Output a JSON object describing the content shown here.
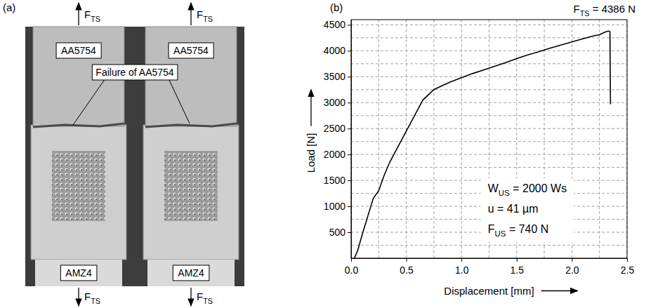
{
  "panel_a": {
    "label": "(a)",
    "annotation": "Failure of AA5754",
    "specimens": [
      {
        "top_label": "AA5754",
        "bottom_label": "AMZ4",
        "force_top": {
          "main": "F",
          "sub": "TS"
        },
        "force_bottom": {
          "main": "F",
          "sub": "TS"
        }
      },
      {
        "top_label": "AA5754",
        "bottom_label": "AMZ4",
        "force_top": {
          "main": "F",
          "sub": "TS"
        },
        "force_bottom": {
          "main": "F",
          "sub": "TS"
        }
      }
    ]
  },
  "chart_data": {
    "type": "line",
    "panel_label": "(b)",
    "title": {
      "main": "F",
      "sub": "TS",
      "rest": " = 4386 N"
    },
    "x_label": "Displacement [mm]",
    "y_label": "Load [N]",
    "annotations": [
      {
        "main": "W",
        "sub": "US",
        "rest": " = 2000 Ws"
      },
      {
        "main": "u",
        "rest": " = 41 µm"
      },
      {
        "main": "F",
        "sub": "US",
        "rest": " = 740 N"
      }
    ],
    "x": [
      0.03,
      0.06,
      0.1,
      0.15,
      0.2,
      0.25,
      0.3,
      0.35,
      0.4,
      0.45,
      0.5,
      0.55,
      0.6,
      0.65,
      0.7,
      0.75,
      0.8,
      0.9,
      1.0,
      1.1,
      1.2,
      1.3,
      1.4,
      1.5,
      1.6,
      1.7,
      1.8,
      1.9,
      2.0,
      2.1,
      2.2,
      2.25,
      2.3,
      2.33,
      2.345,
      2.35
    ],
    "values": [
      0,
      150,
      450,
      800,
      1150,
      1300,
      1600,
      1850,
      2050,
      2250,
      2450,
      2650,
      2850,
      3050,
      3150,
      3250,
      3300,
      3400,
      3480,
      3560,
      3630,
      3700,
      3770,
      3850,
      3920,
      3980,
      4050,
      4110,
      4170,
      4230,
      4290,
      4310,
      4360,
      4380,
      4370,
      2970
    ],
    "color": "#000000",
    "line_style": "solid",
    "xlim": [
      0,
      2.5
    ],
    "ylim": [
      0,
      4600
    ],
    "xticks": [
      {
        "value": 0,
        "label": "0.0"
      },
      0.5,
      {
        "value": 1,
        "label": "1.0"
      },
      1.5,
      {
        "value": 2,
        "label": "2.0"
      },
      2.5
    ],
    "yticks": [
      500,
      1000,
      1500,
      2000,
      2500,
      3000,
      3500,
      4000,
      4500
    ],
    "xticks_minor": [
      0.25,
      0.75,
      1.25,
      1.75,
      2.25
    ],
    "yticks_minor": [
      250,
      750,
      1250,
      1750,
      2250,
      2750,
      3250,
      3750,
      4250
    ],
    "grid": true
  }
}
